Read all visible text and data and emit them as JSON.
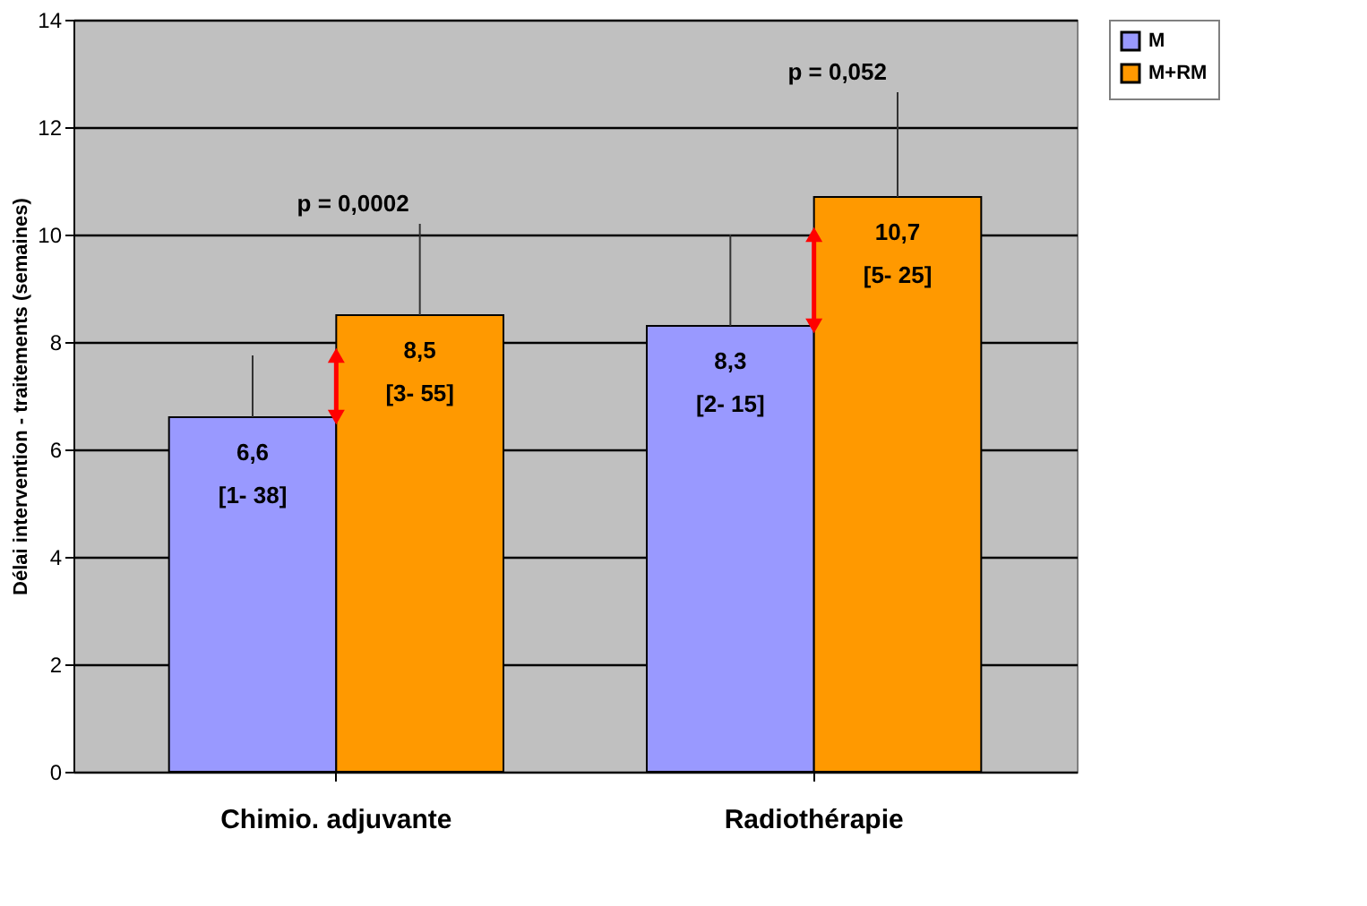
{
  "chart_data": {
    "type": "bar",
    "ylabel": "Délai intervention - traitements (semaines)",
    "categories": [
      "Chimio. adjuvante",
      "Radiothérapie"
    ],
    "series": [
      {
        "name": "M",
        "color": "#9999ff",
        "values": [
          6.6,
          8.3
        ],
        "errors": [
          [
            6.6,
            7.75
          ],
          [
            8.3,
            10.0
          ]
        ],
        "value_labels": [
          "6,6\n[1- 38]",
          "8,3\n[2- 15]"
        ]
      },
      {
        "name": "M+RM",
        "color": "#ff9900",
        "values": [
          8.5,
          10.7
        ],
        "errors": [
          [
            8.5,
            10.2
          ],
          [
            10.7,
            12.65
          ]
        ],
        "value_labels": [
          "8,5\n[3- 55]",
          "10,7\n[5- 25]"
        ]
      }
    ],
    "annotations": [
      "p = 0,0002",
      "p = 0,052"
    ],
    "ylim": [
      0,
      14
    ],
    "yticks": [
      0,
      2,
      4,
      6,
      8,
      10,
      12,
      14
    ],
    "grid": "y",
    "legend": "right"
  }
}
